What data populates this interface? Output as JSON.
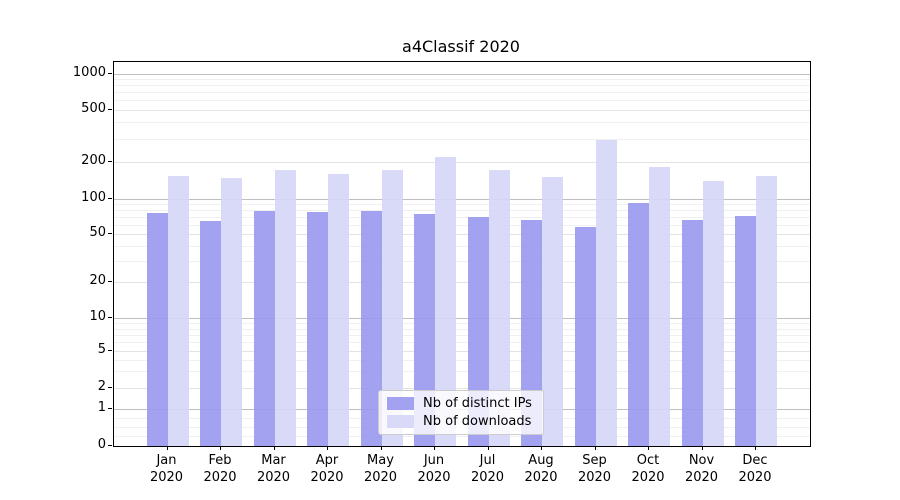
{
  "chart_data": {
    "type": "bar",
    "title": "a4Classif 2020",
    "yscale": "symlog",
    "grid": true,
    "legend_position": "lower center",
    "ylim": [
      0,
      1250
    ],
    "ytick_labels": [
      0,
      1,
      2,
      5,
      10,
      20,
      50,
      100,
      200,
      500,
      1000
    ],
    "categories": [
      "Jan",
      "Feb",
      "Mar",
      "Apr",
      "May",
      "Jun",
      "Jul",
      "Aug",
      "Sep",
      "Oct",
      "Nov",
      "Dec"
    ],
    "category_year": "2020",
    "series": [
      {
        "name": "Nb of distinct IPs",
        "key": "distinct-ips",
        "color_base": "152,152,238",
        "alpha": 0.9,
        "values": [
          76,
          65,
          79,
          78,
          79,
          75,
          71,
          66,
          58,
          92,
          67,
          72
        ]
      },
      {
        "name": "Nb of downloads",
        "key": "downloads",
        "color_base": "213,213,247",
        "alpha": 0.9,
        "values": [
          155,
          148,
          174,
          161,
          174,
          222,
          175,
          153,
          295,
          185,
          141,
          156
        ]
      }
    ]
  },
  "colors": {
    "bar_dark": "#a2a2ef",
    "bar_light": "#d9d9f8",
    "grid_major": "#bfbfbf",
    "grid_minor": "#f0f0f0",
    "spine": "#000000"
  }
}
